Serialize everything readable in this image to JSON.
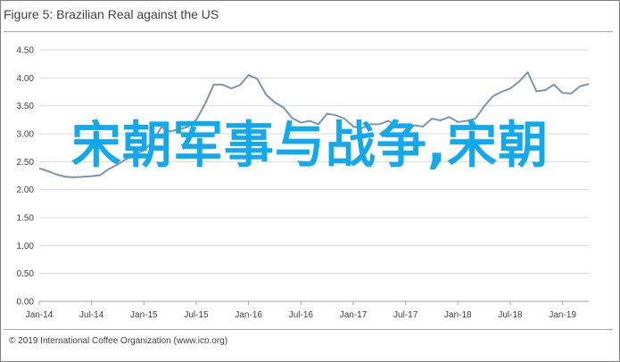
{
  "title": "Figure 5: Brazilian Real against the US",
  "source": "© 2019 International Coffee Organization (www.ico.org)",
  "overlay_text": "宋朝军事与战争,宋朝",
  "colors": {
    "line": "#7a95b4",
    "grid": "#d9d9d9",
    "axis": "#a6a6a6",
    "overlay": "#12a8ee"
  },
  "chart_data": {
    "type": "line",
    "title": "Figure 5: Brazilian Real against the US",
    "xlabel": "",
    "ylabel": "",
    "ylim": [
      0,
      4.5
    ],
    "yticks": [
      "0.00",
      "0.50",
      "1.00",
      "1.50",
      "2.00",
      "2.50",
      "3.00",
      "3.50",
      "4.00",
      "4.50"
    ],
    "xticks": [
      "Jan-14",
      "Jul-14",
      "Jan-15",
      "Jul-15",
      "Jan-16",
      "Jul-16",
      "Jan-17",
      "Jul-17",
      "Jan-18",
      "Jul-18",
      "Jan-19"
    ],
    "grid": true,
    "series": [
      {
        "values": [
          2.38,
          2.33,
          2.27,
          2.23,
          2.22,
          2.23,
          2.24,
          2.26,
          2.37,
          2.45,
          2.55,
          2.64,
          2.7,
          2.86,
          3.12,
          3.04,
          3.08,
          3.12,
          3.25,
          3.53,
          3.88,
          3.88,
          3.81,
          3.87,
          4.05,
          3.98,
          3.7,
          3.56,
          3.47,
          3.28,
          3.2,
          3.23,
          3.17,
          3.36,
          3.33,
          3.27,
          3.13,
          3.1,
          3.17,
          3.17,
          3.23,
          3.15,
          3.16,
          3.15,
          3.13,
          3.27,
          3.24,
          3.3,
          3.21,
          3.23,
          3.27,
          3.49,
          3.67,
          3.75,
          3.81,
          3.93,
          4.1,
          3.76,
          3.78,
          3.88,
          3.73,
          3.72,
          3.85,
          3.89
        ]
      }
    ]
  }
}
